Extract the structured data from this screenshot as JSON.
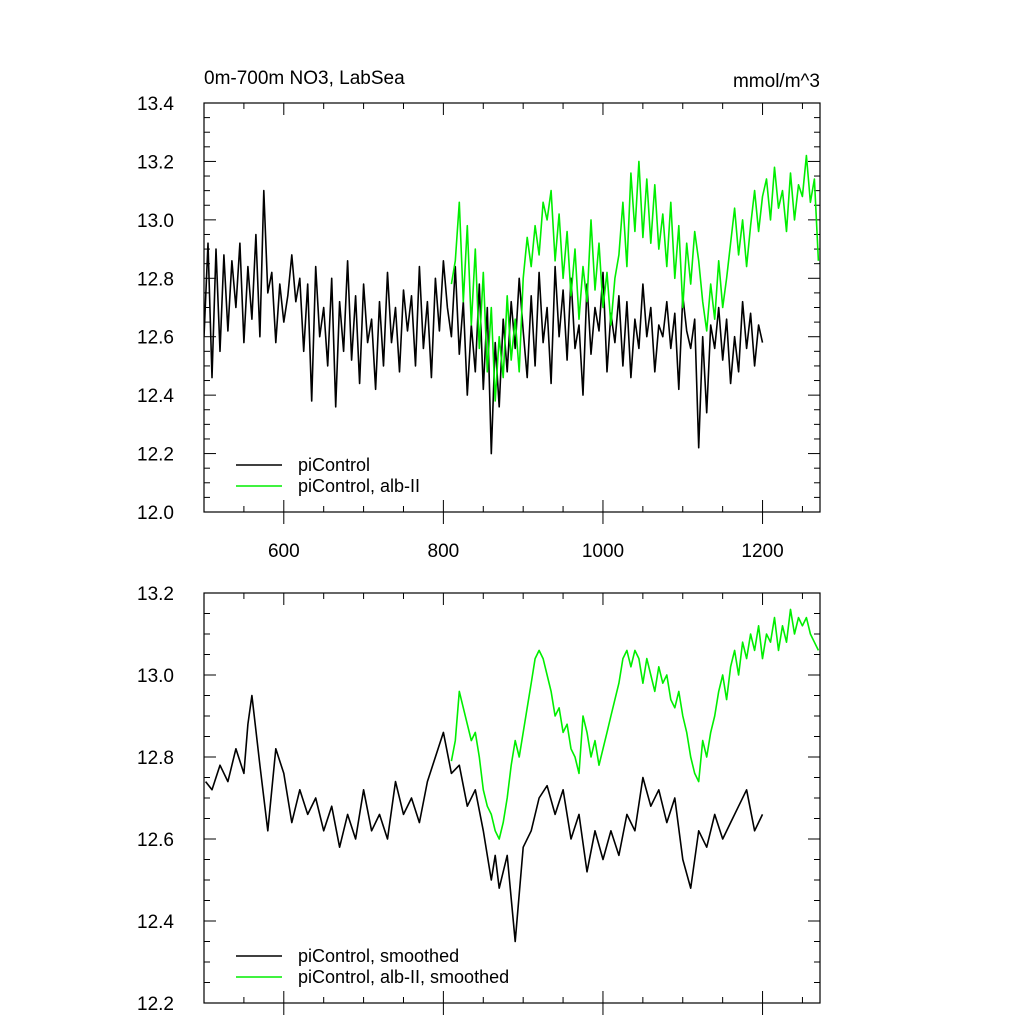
{
  "chart_data": [
    {
      "type": "line",
      "title": "0m-700m NO3, LabSea",
      "title_right": "mmol/m^3",
      "xlim": [
        500,
        1272
      ],
      "ylim": [
        12.0,
        13.4
      ],
      "xticks": [
        600,
        800,
        1000,
        1200
      ],
      "xtick_labels": [
        "600",
        "800",
        "1000",
        "1200"
      ],
      "yticks": [
        12.0,
        12.2,
        12.4,
        12.6,
        12.8,
        13.0,
        13.2,
        13.4
      ],
      "ytick_labels": [
        "12.0",
        "12.2",
        "12.4",
        "12.6",
        "12.8",
        "13.0",
        "13.2",
        "13.4"
      ],
      "legend_position": "bottom-left",
      "series": [
        {
          "name": "piControl",
          "color": "#000000",
          "x": [
            500,
            505,
            510,
            515,
            520,
            525,
            530,
            535,
            540,
            545,
            550,
            555,
            560,
            565,
            570,
            575,
            580,
            585,
            590,
            595,
            600,
            605,
            610,
            615,
            620,
            625,
            630,
            635,
            640,
            645,
            650,
            655,
            660,
            665,
            670,
            675,
            680,
            685,
            690,
            695,
            700,
            705,
            710,
            715,
            720,
            725,
            730,
            735,
            740,
            745,
            750,
            755,
            760,
            765,
            770,
            775,
            780,
            785,
            790,
            795,
            800,
            805,
            810,
            815,
            820,
            825,
            830,
            835,
            840,
            845,
            850,
            855,
            860,
            865,
            870,
            875,
            880,
            885,
            890,
            895,
            900,
            905,
            910,
            915,
            920,
            925,
            930,
            935,
            940,
            945,
            950,
            955,
            960,
            965,
            970,
            975,
            980,
            985,
            990,
            995,
            1000,
            1005,
            1010,
            1015,
            1020,
            1025,
            1030,
            1035,
            1040,
            1045,
            1050,
            1055,
            1060,
            1065,
            1070,
            1075,
            1080,
            1085,
            1090,
            1095,
            1100,
            1105,
            1110,
            1115,
            1120,
            1125,
            1130,
            1135,
            1140,
            1145,
            1150,
            1155,
            1160,
            1165,
            1170,
            1175,
            1180,
            1185,
            1190,
            1195,
            1200
          ],
          "y": [
            12.6,
            12.92,
            12.46,
            12.9,
            12.55,
            12.88,
            12.62,
            12.86,
            12.7,
            12.92,
            12.58,
            12.84,
            12.66,
            12.95,
            12.6,
            13.1,
            12.75,
            12.82,
            12.58,
            12.78,
            12.65,
            12.74,
            12.88,
            12.72,
            12.8,
            12.55,
            12.78,
            12.38,
            12.84,
            12.6,
            12.7,
            12.5,
            12.8,
            12.36,
            12.72,
            12.55,
            12.86,
            12.52,
            12.74,
            12.44,
            12.78,
            12.58,
            12.66,
            12.42,
            12.72,
            12.5,
            12.82,
            12.58,
            12.7,
            12.48,
            12.76,
            12.62,
            12.74,
            12.5,
            12.84,
            12.56,
            12.72,
            12.46,
            12.8,
            12.62,
            12.86,
            12.7,
            12.6,
            12.84,
            12.54,
            12.72,
            12.4,
            12.64,
            12.48,
            12.78,
            12.42,
            12.7,
            12.2,
            12.58,
            12.36,
            12.66,
            12.48,
            12.72,
            12.56,
            12.8,
            12.62,
            12.46,
            12.74,
            12.5,
            12.82,
            12.58,
            12.7,
            12.44,
            12.84,
            12.6,
            12.76,
            12.52,
            12.8,
            12.56,
            12.64,
            12.4,
            12.78,
            12.54,
            12.7,
            12.62,
            12.82,
            12.48,
            12.68,
            12.58,
            12.74,
            12.5,
            12.72,
            12.46,
            12.66,
            12.56,
            12.78,
            12.6,
            12.7,
            12.48,
            12.64,
            12.6,
            12.72,
            12.56,
            12.68,
            12.42,
            12.74,
            12.62,
            12.56,
            12.66,
            12.22,
            12.6,
            12.34,
            12.64,
            12.56,
            12.7,
            12.52,
            12.66,
            12.44,
            12.6,
            12.48,
            12.72,
            12.56,
            12.68,
            12.5,
            12.64,
            12.58
          ]
        },
        {
          "name": "piControl, alb-II",
          "color": "#00ee00",
          "x": [
            810,
            815,
            820,
            825,
            830,
            835,
            840,
            845,
            850,
            855,
            860,
            865,
            870,
            875,
            880,
            885,
            890,
            895,
            900,
            905,
            910,
            915,
            920,
            925,
            930,
            935,
            940,
            945,
            950,
            955,
            960,
            965,
            970,
            975,
            980,
            985,
            990,
            995,
            1000,
            1005,
            1010,
            1015,
            1020,
            1025,
            1030,
            1035,
            1040,
            1045,
            1050,
            1055,
            1060,
            1065,
            1070,
            1075,
            1080,
            1085,
            1090,
            1095,
            1100,
            1105,
            1110,
            1115,
            1120,
            1125,
            1130,
            1135,
            1140,
            1145,
            1150,
            1155,
            1160,
            1165,
            1170,
            1175,
            1180,
            1185,
            1190,
            1195,
            1200,
            1205,
            1210,
            1215,
            1220,
            1225,
            1230,
            1235,
            1240,
            1245,
            1250,
            1255,
            1260,
            1265,
            1270
          ],
          "y": [
            12.78,
            12.86,
            13.06,
            12.72,
            12.98,
            12.64,
            12.9,
            12.56,
            12.82,
            12.48,
            12.7,
            12.38,
            12.6,
            12.46,
            12.74,
            12.52,
            12.66,
            12.48,
            12.8,
            12.94,
            12.84,
            12.98,
            12.88,
            13.06,
            13.0,
            13.1,
            12.86,
            13.02,
            12.8,
            12.96,
            12.74,
            12.9,
            12.66,
            12.84,
            12.72,
            13.0,
            12.76,
            12.92,
            12.7,
            12.82,
            12.64,
            12.8,
            12.88,
            13.06,
            12.84,
            13.16,
            12.96,
            13.2,
            12.94,
            13.14,
            12.92,
            13.12,
            12.9,
            13.02,
            12.84,
            13.06,
            12.8,
            12.98,
            12.7,
            12.92,
            12.78,
            12.96,
            12.86,
            12.72,
            12.62,
            12.78,
            12.66,
            12.86,
            12.7,
            12.8,
            12.92,
            13.04,
            12.88,
            13.0,
            12.84,
            12.98,
            13.1,
            12.96,
            13.08,
            13.14,
            13.0,
            13.18,
            13.04,
            13.1,
            12.96,
            13.16,
            13.0,
            13.12,
            13.08,
            13.22,
            13.06,
            13.14,
            12.86
          ]
        }
      ]
    },
    {
      "type": "line",
      "xlim": [
        500,
        1272
      ],
      "ylim": [
        12.2,
        13.2
      ],
      "xticks": [
        600,
        800,
        1000,
        1200
      ],
      "yticks": [
        12.2,
        12.4,
        12.6,
        12.8,
        13.0,
        13.2
      ],
      "ytick_labels": [
        "12.2",
        "12.4",
        "12.6",
        "12.8",
        "13.0",
        "13.2"
      ],
      "legend_position": "bottom-left",
      "series": [
        {
          "name": "piControl, smoothed",
          "color": "#000000",
          "x": [
            502,
            510,
            520,
            530,
            540,
            550,
            555,
            560,
            570,
            580,
            590,
            600,
            610,
            620,
            630,
            640,
            650,
            660,
            670,
            680,
            690,
            700,
            710,
            720,
            730,
            740,
            750,
            760,
            770,
            780,
            790,
            800,
            810,
            820,
            830,
            840,
            850,
            860,
            865,
            870,
            880,
            890,
            900,
            910,
            920,
            930,
            940,
            950,
            960,
            970,
            980,
            990,
            1000,
            1010,
            1020,
            1030,
            1040,
            1050,
            1060,
            1070,
            1080,
            1090,
            1100,
            1110,
            1120,
            1130,
            1140,
            1150,
            1160,
            1170,
            1180,
            1190,
            1200
          ],
          "y": [
            12.74,
            12.72,
            12.78,
            12.74,
            12.82,
            12.76,
            12.88,
            12.95,
            12.78,
            12.62,
            12.82,
            12.76,
            12.64,
            12.72,
            12.66,
            12.7,
            12.62,
            12.68,
            12.58,
            12.66,
            12.6,
            12.72,
            12.62,
            12.66,
            12.6,
            12.74,
            12.66,
            12.7,
            12.64,
            12.74,
            12.8,
            12.86,
            12.76,
            12.78,
            12.68,
            12.72,
            12.62,
            12.5,
            12.56,
            12.48,
            12.56,
            12.35,
            12.58,
            12.62,
            12.7,
            12.73,
            12.66,
            12.72,
            12.6,
            12.66,
            12.52,
            12.62,
            12.55,
            12.62,
            12.56,
            12.66,
            12.62,
            12.75,
            12.68,
            12.72,
            12.64,
            12.7,
            12.55,
            12.48,
            12.62,
            12.58,
            12.66,
            12.6,
            12.64,
            12.68,
            12.72,
            12.62,
            12.66
          ]
        },
        {
          "name": "piControl, alb-II, smoothed",
          "color": "#00ee00",
          "x": [
            810,
            815,
            820,
            825,
            830,
            835,
            840,
            845,
            850,
            855,
            860,
            865,
            870,
            875,
            880,
            885,
            890,
            895,
            900,
            905,
            910,
            915,
            920,
            925,
            930,
            935,
            940,
            945,
            950,
            955,
            960,
            965,
            970,
            975,
            980,
            985,
            990,
            995,
            1000,
            1005,
            1010,
            1015,
            1020,
            1025,
            1030,
            1035,
            1040,
            1045,
            1050,
            1055,
            1060,
            1065,
            1070,
            1075,
            1080,
            1085,
            1090,
            1095,
            1100,
            1105,
            1110,
            1115,
            1120,
            1125,
            1130,
            1135,
            1140,
            1145,
            1150,
            1155,
            1160,
            1165,
            1170,
            1175,
            1180,
            1185,
            1190,
            1195,
            1200,
            1205,
            1210,
            1215,
            1220,
            1225,
            1230,
            1235,
            1240,
            1245,
            1250,
            1255,
            1260,
            1265,
            1270
          ],
          "y": [
            12.79,
            12.84,
            12.96,
            12.92,
            12.88,
            12.84,
            12.86,
            12.8,
            12.72,
            12.68,
            12.66,
            12.62,
            12.6,
            12.64,
            12.7,
            12.78,
            12.84,
            12.8,
            12.86,
            12.92,
            12.98,
            13.04,
            13.06,
            13.04,
            13.0,
            12.96,
            12.9,
            12.92,
            12.86,
            12.88,
            12.82,
            12.8,
            12.76,
            12.9,
            12.86,
            12.8,
            12.84,
            12.78,
            12.82,
            12.86,
            12.9,
            12.94,
            12.98,
            13.04,
            13.06,
            13.02,
            13.06,
            13.04,
            12.98,
            13.04,
            13.0,
            12.96,
            13.02,
            12.98,
            13.0,
            12.94,
            12.92,
            12.96,
            12.9,
            12.86,
            12.8,
            12.76,
            12.74,
            12.84,
            12.8,
            12.86,
            12.9,
            12.96,
            13.0,
            12.94,
            13.02,
            13.06,
            13.0,
            13.08,
            13.04,
            13.1,
            13.06,
            13.12,
            13.04,
            13.1,
            13.08,
            13.14,
            13.06,
            13.12,
            13.08,
            13.16,
            13.1,
            13.14,
            13.12,
            13.14,
            13.1,
            13.08,
            13.06
          ]
        }
      ]
    }
  ]
}
